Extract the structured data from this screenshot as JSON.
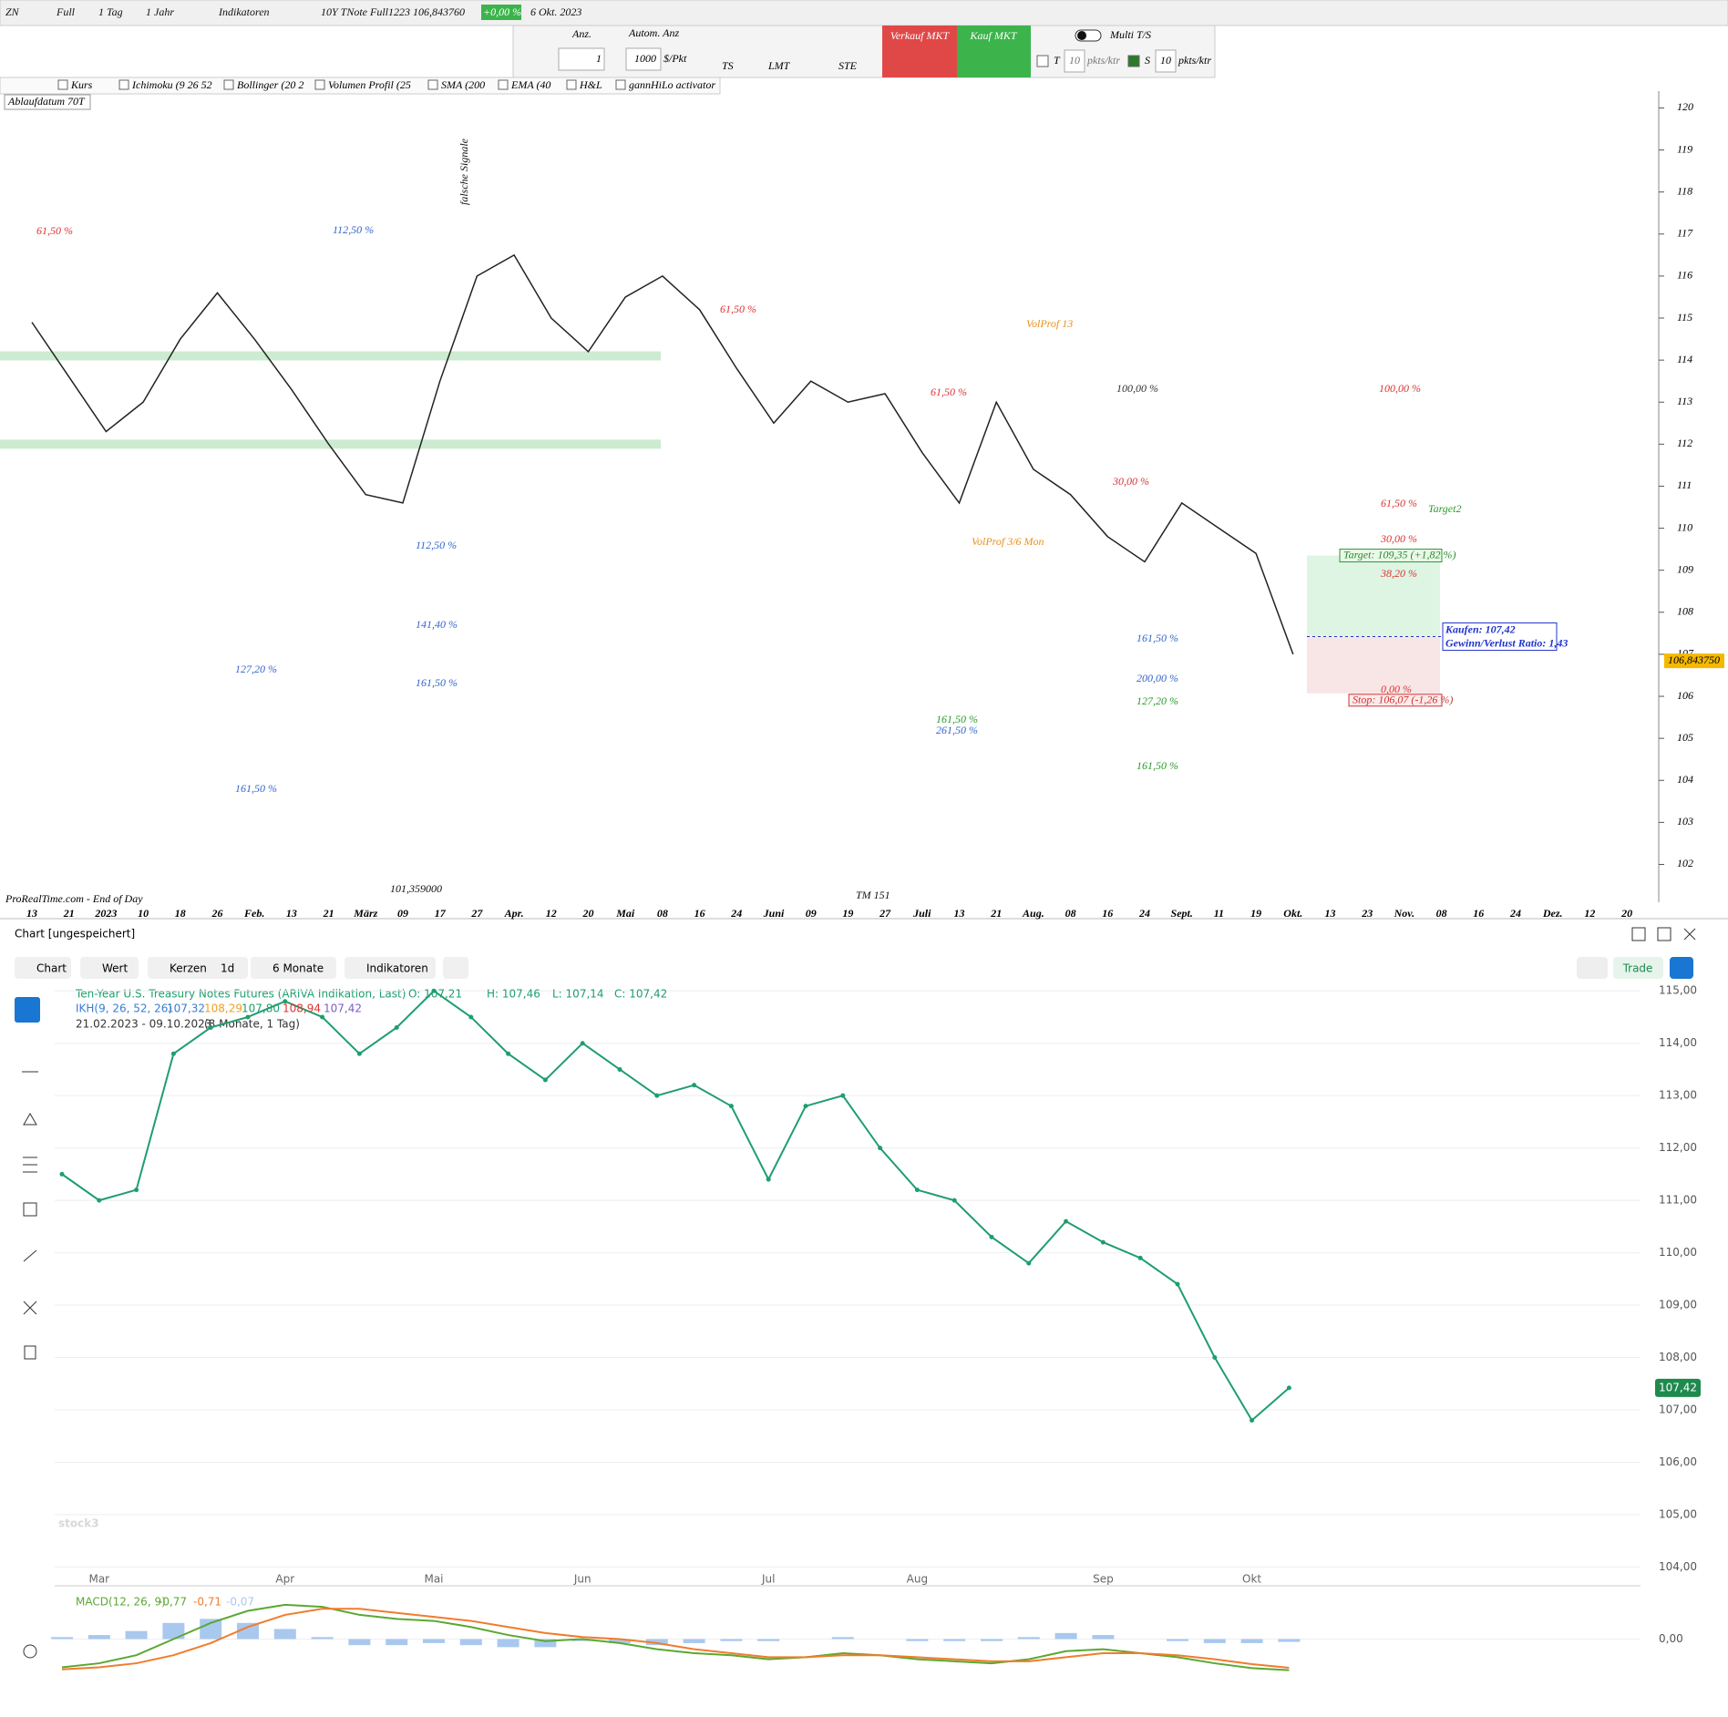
{
  "top_toolbar": {
    "items": [
      "ZN",
      "Full",
      "1 Tag",
      "1 Jahr",
      "Indikatoren",
      "10Y TNote Full1223 106,843760",
      "+0,00 %",
      "6 Okt. 2023"
    ]
  },
  "order_panel": {
    "qty_label": "Anz.",
    "auto_qty": "Autom. Anz",
    "qty": "1",
    "point_value": "1000",
    "per_point": "$/Pkt",
    "ts": "TS",
    "lmt": "LMT",
    "ste": "STE",
    "sell": "Verkauf MKT",
    "buy": "Kauf MKT",
    "multi": "Multi T/S",
    "t": "T",
    "t_value": "10",
    "t_unit": "pkts/ktr",
    "s": "S",
    "s_value": "10",
    "s_unit": "pkts/ktr"
  },
  "indicator_bar": [
    "Kurs",
    "Ichimoku (9 26 52",
    "Bollinger (20 2",
    "Volumen Profil (25",
    "SMA (200",
    "EMA (40",
    "H&L",
    "gannHiLo activator"
  ],
  "expiry": "Ablaufdatum 70T",
  "footer": "ProRealTime.com - End of Day",
  "chart_data": [
    {
      "type": "line",
      "color": "#222222",
      "categories": [
        "13",
        "21",
        "2023",
        "10",
        "18",
        "26",
        "Feb.",
        "13",
        "21",
        "März",
        "09",
        "17",
        "27",
        "Apr.",
        "12",
        "20",
        "Mai",
        "08",
        "16",
        "24",
        "Juni",
        "09",
        "19",
        "27",
        "Juli",
        "13",
        "21",
        "Aug.",
        "08",
        "16",
        "24",
        "Sept.",
        "11",
        "19",
        "Okt.",
        "13",
        "23",
        "Nov.",
        "08",
        "16",
        "24",
        "Dez.",
        "12",
        "20"
      ],
      "values": [
        114.9,
        113.6,
        112.3,
        113.0,
        114.5,
        115.6,
        114.5,
        113.3,
        112.0,
        110.8,
        110.6,
        113.5,
        116.0,
        116.5,
        115.0,
        114.2,
        115.5,
        116.0,
        115.2,
        113.8,
        112.5,
        113.5,
        113.0,
        113.2,
        111.8,
        110.6,
        113.0,
        111.4,
        110.8,
        109.8,
        109.2,
        110.6,
        110.0,
        109.4,
        107.0,
        null,
        null,
        null,
        null,
        null,
        null,
        null,
        null,
        null
      ],
      "ylim": [
        101.1,
        120.4
      ],
      "yticks": [
        102,
        103,
        104,
        105,
        106,
        107,
        108,
        109,
        110,
        111,
        112,
        113,
        114,
        115,
        116,
        117,
        118,
        119,
        120
      ],
      "zones": [
        114.1,
        112.0
      ],
      "zone_color": "#bfe6c4",
      "last_price": {
        "value": 106.84375,
        "label": "106,843750"
      },
      "trade": {
        "entry": 107.42,
        "target": 109.35,
        "stop": 106.07,
        "entry_label": "Kaufen: 107,42",
        "ratio_label": "Gewinn/Verlust Ratio: 1,43",
        "target_label": "Target: 109,35 (+1,82 %)",
        "stop_label": "Stop: 106,07 (-1,26 %)"
      },
      "annotations": [
        "61,50 %",
        "112,50 %",
        "127,20 %",
        "161,50 %",
        "112,50 %",
        "141,40 %",
        "161,50 %",
        "falsche Signale",
        "61,50 %",
        "VolProf 13",
        "100,00 %",
        "61,50 %",
        "VolProf 3/6 Mon",
        "30,00 %",
        "161,50 %",
        "200,00 %",
        "127,20 %",
        "161,50 %",
        "261,50 %",
        "161,50 %",
        "100,00 %",
        "61,50 %",
        "30,00 %",
        "38,20 %",
        "0,00 %",
        "Target2",
        "101,359000",
        "TM 151"
      ]
    },
    {
      "type": "line",
      "color": "#1e9e6e",
      "categories": [
        null,
        "Mar",
        null,
        null,
        null,
        null,
        "Apr",
        null,
        null,
        null,
        "Mai",
        null,
        null,
        null,
        "Jun",
        null,
        null,
        null,
        null,
        "Jul",
        null,
        null,
        null,
        "Aug",
        null,
        null,
        null,
        null,
        "Sep",
        null,
        null,
        null,
        "Okt",
        null
      ],
      "values": [
        111.5,
        111.0,
        111.2,
        113.8,
        114.3,
        114.5,
        114.8,
        114.5,
        113.8,
        114.3,
        115.0,
        114.5,
        113.8,
        113.3,
        114.0,
        113.5,
        113.0,
        113.2,
        112.8,
        111.4,
        112.8,
        113.0,
        112.0,
        111.2,
        111.0,
        110.3,
        109.8,
        110.6,
        110.2,
        109.9,
        109.4,
        108.0,
        106.8,
        107.42
      ],
      "ylim": [
        103.85,
        115.3
      ],
      "yticks": [
        {
          "value": 104,
          "label": "104,00"
        },
        {
          "value": 105,
          "label": "105,00"
        },
        {
          "value": 106,
          "label": "106,00"
        },
        {
          "value": 107,
          "label": "107,00"
        },
        {
          "value": 108,
          "label": "108,00"
        },
        {
          "value": 109,
          "label": "109,00"
        },
        {
          "value": 110,
          "label": "110,00"
        },
        {
          "value": 111,
          "label": "111,00"
        },
        {
          "value": 112,
          "label": "112,00"
        },
        {
          "value": 113,
          "label": "113,00"
        },
        {
          "value": 114,
          "label": "114,00"
        },
        {
          "value": 115,
          "label": "115,00"
        }
      ],
      "grid": true,
      "last_price": {
        "value": 107.42,
        "label": "107,42"
      }
    },
    {
      "type": "macd",
      "series": [
        {
          "color": "#a9c8ee",
          "kind": "bar",
          "values": [
            0.05,
            0.1,
            0.2,
            0.4,
            0.5,
            0.4,
            0.25,
            0.05,
            -0.15,
            -0.15,
            -0.1,
            -0.15,
            -0.2,
            -0.2,
            -0.05,
            -0.1,
            -0.15,
            -0.1,
            -0.05,
            -0.05,
            0.0,
            0.05,
            0.0,
            -0.05,
            -0.05,
            -0.05,
            0.05,
            0.15,
            0.1,
            0.0,
            -0.05,
            -0.1,
            -0.1,
            -0.07
          ]
        },
        {
          "color": "#5aa832",
          "values": [
            -0.7,
            -0.6,
            -0.4,
            0.0,
            0.4,
            0.7,
            0.85,
            0.8,
            0.6,
            0.5,
            0.45,
            0.3,
            0.1,
            -0.05,
            0.0,
            -0.1,
            -0.25,
            -0.35,
            -0.4,
            -0.5,
            -0.45,
            -0.35,
            -0.4,
            -0.5,
            -0.55,
            -0.6,
            -0.5,
            -0.3,
            -0.25,
            -0.35,
            -0.45,
            -0.6,
            -0.72,
            -0.77
          ]
        },
        {
          "color": "#f07c2c",
          "values": [
            -0.75,
            -0.7,
            -0.6,
            -0.4,
            -0.1,
            0.3,
            0.6,
            0.75,
            0.75,
            0.65,
            0.55,
            0.45,
            0.3,
            0.15,
            0.05,
            0.0,
            -0.1,
            -0.25,
            -0.35,
            -0.45,
            -0.45,
            -0.4,
            -0.4,
            -0.45,
            -0.5,
            -0.55,
            -0.55,
            -0.45,
            -0.35,
            -0.35,
            -0.4,
            -0.5,
            -0.62,
            -0.71
          ]
        }
      ],
      "ylim": [
        -1.05,
        1.05
      ],
      "yticks": [
        {
          "value": 0,
          "label": "0,00"
        }
      ]
    }
  ],
  "bottom_panel": {
    "title": "Chart [ungespeichert]",
    "toolbar": [
      "Chart",
      "Wert",
      "Kerzen",
      "1d",
      "6 Monate",
      "Indikatoren"
    ],
    "trade": "Trade",
    "watermark": "stock3",
    "legend": {
      "line1": "Ten-Year U.S. Treasury Notes Futures (ARIVA Indikation, Last)",
      "o": "O: 107,21",
      "h": "H: 107,46",
      "l": "L: 107,14",
      "c": "C: 107,42",
      "ikh": "IKH(9, 26, 52, 26)",
      "ikh_values": [
        "107,32",
        "108,29",
        "107,80",
        "108,94",
        "107,42"
      ],
      "range": "21.02.2023 - 09.10.2023",
      "range_note": "(8 Monate, 1 Tag)",
      "macd": "MACD(12, 26, 9)",
      "macd_values": [
        "-0,77",
        "-0,71",
        "-0,07"
      ]
    }
  }
}
